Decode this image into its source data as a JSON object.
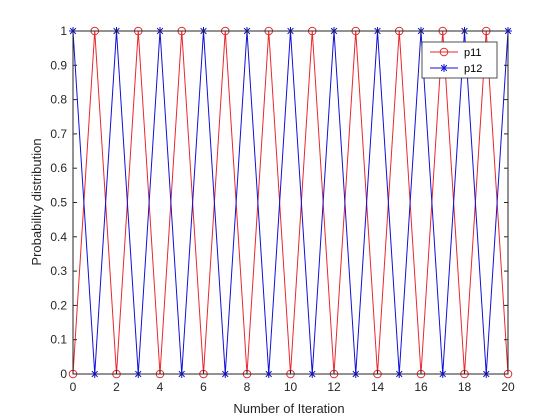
{
  "chart_data": {
    "type": "line",
    "xlabel": "Number of Iteration",
    "ylabel": "Probability distribution",
    "xlim": [
      0,
      20
    ],
    "ylim": [
      0,
      1
    ],
    "x_ticks": [
      "0",
      "2",
      "4",
      "6",
      "8",
      "10",
      "12",
      "14",
      "16",
      "18",
      "20"
    ],
    "y_ticks": [
      "0",
      "0.1",
      "0.2",
      "0.3",
      "0.4",
      "0.5",
      "0.6",
      "0.7",
      "0.8",
      "0.9",
      "1"
    ],
    "x": [
      0,
      1,
      2,
      3,
      4,
      5,
      6,
      7,
      8,
      9,
      10,
      11,
      12,
      13,
      14,
      15,
      16,
      17,
      18,
      19,
      20
    ],
    "series": [
      {
        "name": "p11",
        "color": "#e8282d",
        "marker": "circle",
        "values": [
          0,
          1,
          0,
          1,
          0,
          1,
          0,
          1,
          0,
          1,
          0,
          1,
          0,
          1,
          0,
          1,
          0,
          1,
          0,
          1,
          0
        ]
      },
      {
        "name": "p12",
        "color": "#1010d8",
        "marker": "asterisk",
        "values": [
          1,
          0,
          1,
          0,
          1,
          0,
          1,
          0,
          1,
          0,
          1,
          0,
          1,
          0,
          1,
          0,
          1,
          0,
          1,
          0,
          1
        ]
      }
    ],
    "grid": false,
    "legend_position": "top-right"
  }
}
